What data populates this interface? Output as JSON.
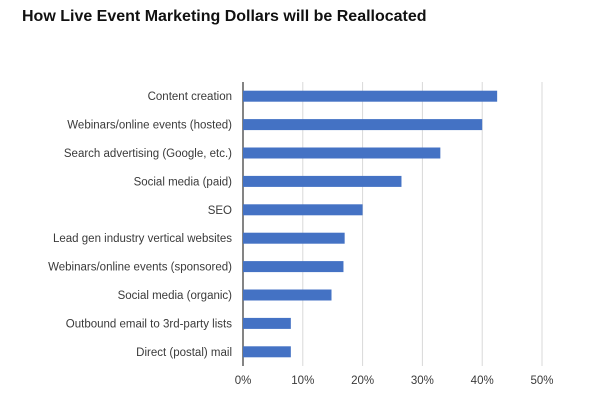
{
  "chart_data": {
    "type": "bar",
    "orientation": "horizontal",
    "title": "How Live Event Marketing Dollars will be Reallocated",
    "categories": [
      "Content creation",
      "Webinars/online events (hosted)",
      "Search advertising (Google, etc.)",
      "Social media (paid)",
      "SEO",
      "Lead gen industry vertical websites",
      "Webinars/online events (sponsored)",
      "Social media (organic)",
      "Outbound email to 3rd-party lists",
      "Direct (postal) mail"
    ],
    "values": [
      42.5,
      40,
      33,
      26.5,
      20,
      17,
      16.8,
      14.8,
      8,
      8
    ],
    "xlim": [
      0,
      50
    ],
    "xticks": [
      "0%",
      "10%",
      "20%",
      "30%",
      "40%",
      "50%"
    ],
    "grid": true,
    "colors": {
      "bar": "#4472c4",
      "grid": "#d9d9d9",
      "axis": "#333333"
    }
  }
}
